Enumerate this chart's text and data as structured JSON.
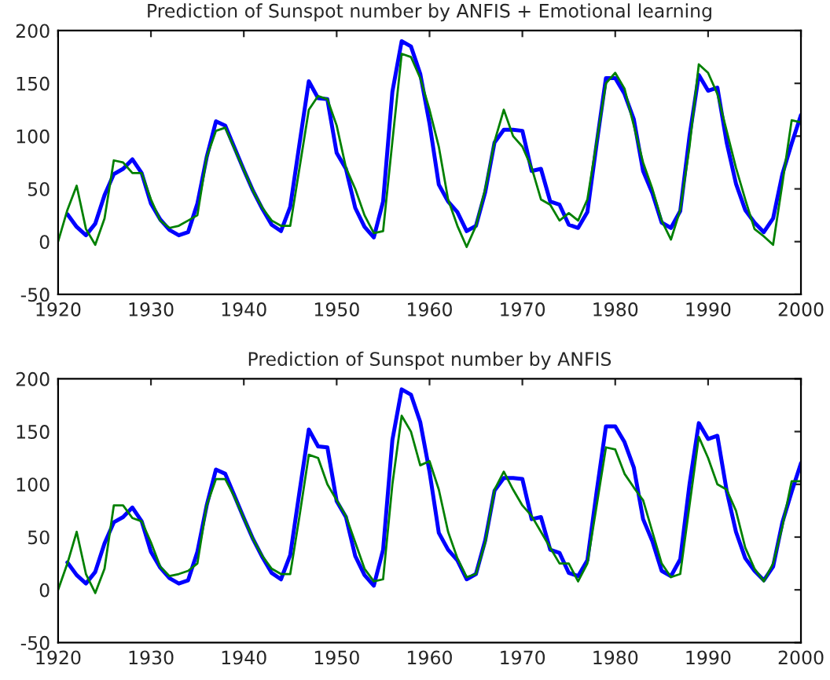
{
  "chart_data": [
    {
      "type": "line",
      "title": "Prediction of Sunspot number by ANFIS + Emotional learning",
      "xlim": [
        1920,
        2000
      ],
      "xticks": [
        1920,
        1930,
        1940,
        1950,
        1960,
        1970,
        1980,
        1990,
        2000
      ],
      "ylim": [
        -50,
        200
      ],
      "yticks": [
        -50,
        0,
        50,
        100,
        150,
        200
      ],
      "grid": false,
      "legend": false,
      "series": [
        {
          "color": "#0000ff",
          "x": [
            1921,
            1922,
            1923,
            1924,
            1925,
            1926,
            1927,
            1928,
            1929,
            1930,
            1931,
            1932,
            1933,
            1934,
            1935,
            1936,
            1937,
            1938,
            1939,
            1940,
            1941,
            1942,
            1943,
            1944,
            1945,
            1946,
            1947,
            1948,
            1949,
            1950,
            1951,
            1952,
            1953,
            1954,
            1955,
            1956,
            1957,
            1958,
            1959,
            1960,
            1961,
            1962,
            1963,
            1964,
            1965,
            1966,
            1967,
            1968,
            1969,
            1970,
            1971,
            1972,
            1973,
            1974,
            1975,
            1976,
            1977,
            1978,
            1979,
            1980,
            1981,
            1982,
            1983,
            1984,
            1985,
            1986,
            1987,
            1988,
            1989,
            1990,
            1991,
            1992,
            1993,
            1994,
            1995,
            1996,
            1997,
            1998,
            1999,
            2000
          ],
          "values": [
            26,
            14,
            6,
            17,
            44,
            64,
            69,
            78,
            65,
            36,
            21,
            11,
            6,
            9,
            36,
            80,
            114,
            110,
            89,
            68,
            48,
            31,
            16,
            10,
            33,
            93,
            152,
            136,
            135,
            84,
            69,
            32,
            14,
            4,
            38,
            142,
            190,
            185,
            159,
            112,
            54,
            38,
            28,
            10,
            15,
            47,
            94,
            106,
            106,
            105,
            67,
            69,
            38,
            35,
            16,
            13,
            28,
            93,
            155,
            155,
            140,
            116,
            67,
            46,
            18,
            13,
            29,
            100,
            158,
            143,
            146,
            94,
            55,
            30,
            18,
            9,
            22,
            64,
            93,
            120
          ]
        },
        {
          "color": "#008000",
          "x": [
            1920,
            1921,
            1922,
            1923,
            1924,
            1925,
            1926,
            1927,
            1928,
            1929,
            1930,
            1931,
            1932,
            1933,
            1934,
            1935,
            1936,
            1937,
            1938,
            1939,
            1940,
            1941,
            1942,
            1943,
            1944,
            1945,
            1946,
            1947,
            1948,
            1949,
            1950,
            1951,
            1952,
            1953,
            1954,
            1955,
            1956,
            1957,
            1958,
            1959,
            1960,
            1961,
            1962,
            1963,
            1964,
            1965,
            1966,
            1967,
            1968,
            1969,
            1970,
            1971,
            1972,
            1973,
            1974,
            1975,
            1976,
            1977,
            1978,
            1979,
            1980,
            1981,
            1982,
            1983,
            1984,
            1985,
            1986,
            1987,
            1988,
            1989,
            1990,
            1991,
            1992,
            1993,
            1994,
            1995,
            1996,
            1997,
            1998,
            1999,
            2000
          ],
          "values": [
            0,
            30,
            53,
            12,
            -3,
            22,
            77,
            75,
            65,
            65,
            40,
            20,
            13,
            15,
            20,
            25,
            80,
            105,
            108,
            88,
            68,
            48,
            32,
            20,
            15,
            15,
            70,
            125,
            138,
            135,
            110,
            70,
            50,
            25,
            8,
            10,
            95,
            178,
            175,
            155,
            125,
            90,
            40,
            15,
            -5,
            15,
            50,
            95,
            125,
            100,
            90,
            70,
            40,
            35,
            20,
            27,
            20,
            40,
            95,
            150,
            160,
            145,
            110,
            75,
            50,
            20,
            2,
            30,
            90,
            168,
            160,
            140,
            105,
            70,
            40,
            12,
            5,
            -3,
            55,
            115,
            113
          ]
        }
      ]
    },
    {
      "type": "line",
      "title": "Prediction of Sunspot number by ANFIS",
      "xlim": [
        1920,
        2000
      ],
      "xticks": [
        1920,
        1930,
        1940,
        1950,
        1960,
        1970,
        1980,
        1990,
        2000
      ],
      "ylim": [
        -50,
        200
      ],
      "yticks": [
        -50,
        0,
        50,
        100,
        150,
        200
      ],
      "grid": false,
      "legend": false,
      "series": [
        {
          "color": "#0000ff",
          "x": [
            1921,
            1922,
            1923,
            1924,
            1925,
            1926,
            1927,
            1928,
            1929,
            1930,
            1931,
            1932,
            1933,
            1934,
            1935,
            1936,
            1937,
            1938,
            1939,
            1940,
            1941,
            1942,
            1943,
            1944,
            1945,
            1946,
            1947,
            1948,
            1949,
            1950,
            1951,
            1952,
            1953,
            1954,
            1955,
            1956,
            1957,
            1958,
            1959,
            1960,
            1961,
            1962,
            1963,
            1964,
            1965,
            1966,
            1967,
            1968,
            1969,
            1970,
            1971,
            1972,
            1973,
            1974,
            1975,
            1976,
            1977,
            1978,
            1979,
            1980,
            1981,
            1982,
            1983,
            1984,
            1985,
            1986,
            1987,
            1988,
            1989,
            1990,
            1991,
            1992,
            1993,
            1994,
            1995,
            1996,
            1997,
            1998,
            1999,
            2000
          ],
          "values": [
            26,
            14,
            6,
            17,
            44,
            64,
            69,
            78,
            65,
            36,
            21,
            11,
            6,
            9,
            36,
            80,
            114,
            110,
            89,
            68,
            48,
            31,
            16,
            10,
            33,
            93,
            152,
            136,
            135,
            84,
            69,
            32,
            14,
            4,
            38,
            142,
            190,
            185,
            159,
            112,
            54,
            38,
            28,
            10,
            15,
            47,
            94,
            106,
            106,
            105,
            67,
            69,
            38,
            35,
            16,
            13,
            28,
            93,
            155,
            155,
            140,
            116,
            67,
            46,
            18,
            13,
            29,
            100,
            158,
            143,
            146,
            94,
            55,
            30,
            18,
            9,
            22,
            64,
            93,
            120
          ]
        },
        {
          "color": "#008000",
          "x": [
            1920,
            1921,
            1922,
            1923,
            1924,
            1925,
            1926,
            1927,
            1928,
            1929,
            1930,
            1931,
            1932,
            1933,
            1934,
            1935,
            1936,
            1937,
            1938,
            1939,
            1940,
            1941,
            1942,
            1943,
            1944,
            1945,
            1946,
            1947,
            1948,
            1949,
            1950,
            1951,
            1952,
            1953,
            1954,
            1955,
            1956,
            1957,
            1958,
            1959,
            1960,
            1961,
            1962,
            1963,
            1964,
            1965,
            1966,
            1967,
            1968,
            1969,
            1970,
            1971,
            1972,
            1973,
            1974,
            1975,
            1976,
            1977,
            1978,
            1979,
            1980,
            1981,
            1982,
            1983,
            1984,
            1985,
            1986,
            1987,
            1988,
            1989,
            1990,
            1991,
            1992,
            1993,
            1994,
            1995,
            1996,
            1997,
            1998,
            1999,
            2000
          ],
          "values": [
            0,
            25,
            55,
            15,
            -3,
            20,
            80,
            80,
            68,
            65,
            45,
            22,
            13,
            15,
            18,
            25,
            80,
            105,
            105,
            88,
            68,
            48,
            32,
            20,
            15,
            15,
            70,
            128,
            125,
            100,
            85,
            70,
            45,
            20,
            8,
            10,
            100,
            165,
            150,
            118,
            122,
            95,
            55,
            30,
            12,
            15,
            45,
            95,
            112,
            95,
            80,
            70,
            55,
            40,
            25,
            25,
            8,
            25,
            80,
            135,
            133,
            110,
            97,
            85,
            55,
            25,
            12,
            15,
            80,
            145,
            125,
            100,
            95,
            75,
            40,
            20,
            8,
            25,
            60,
            103,
            103
          ]
        }
      ]
    }
  ]
}
